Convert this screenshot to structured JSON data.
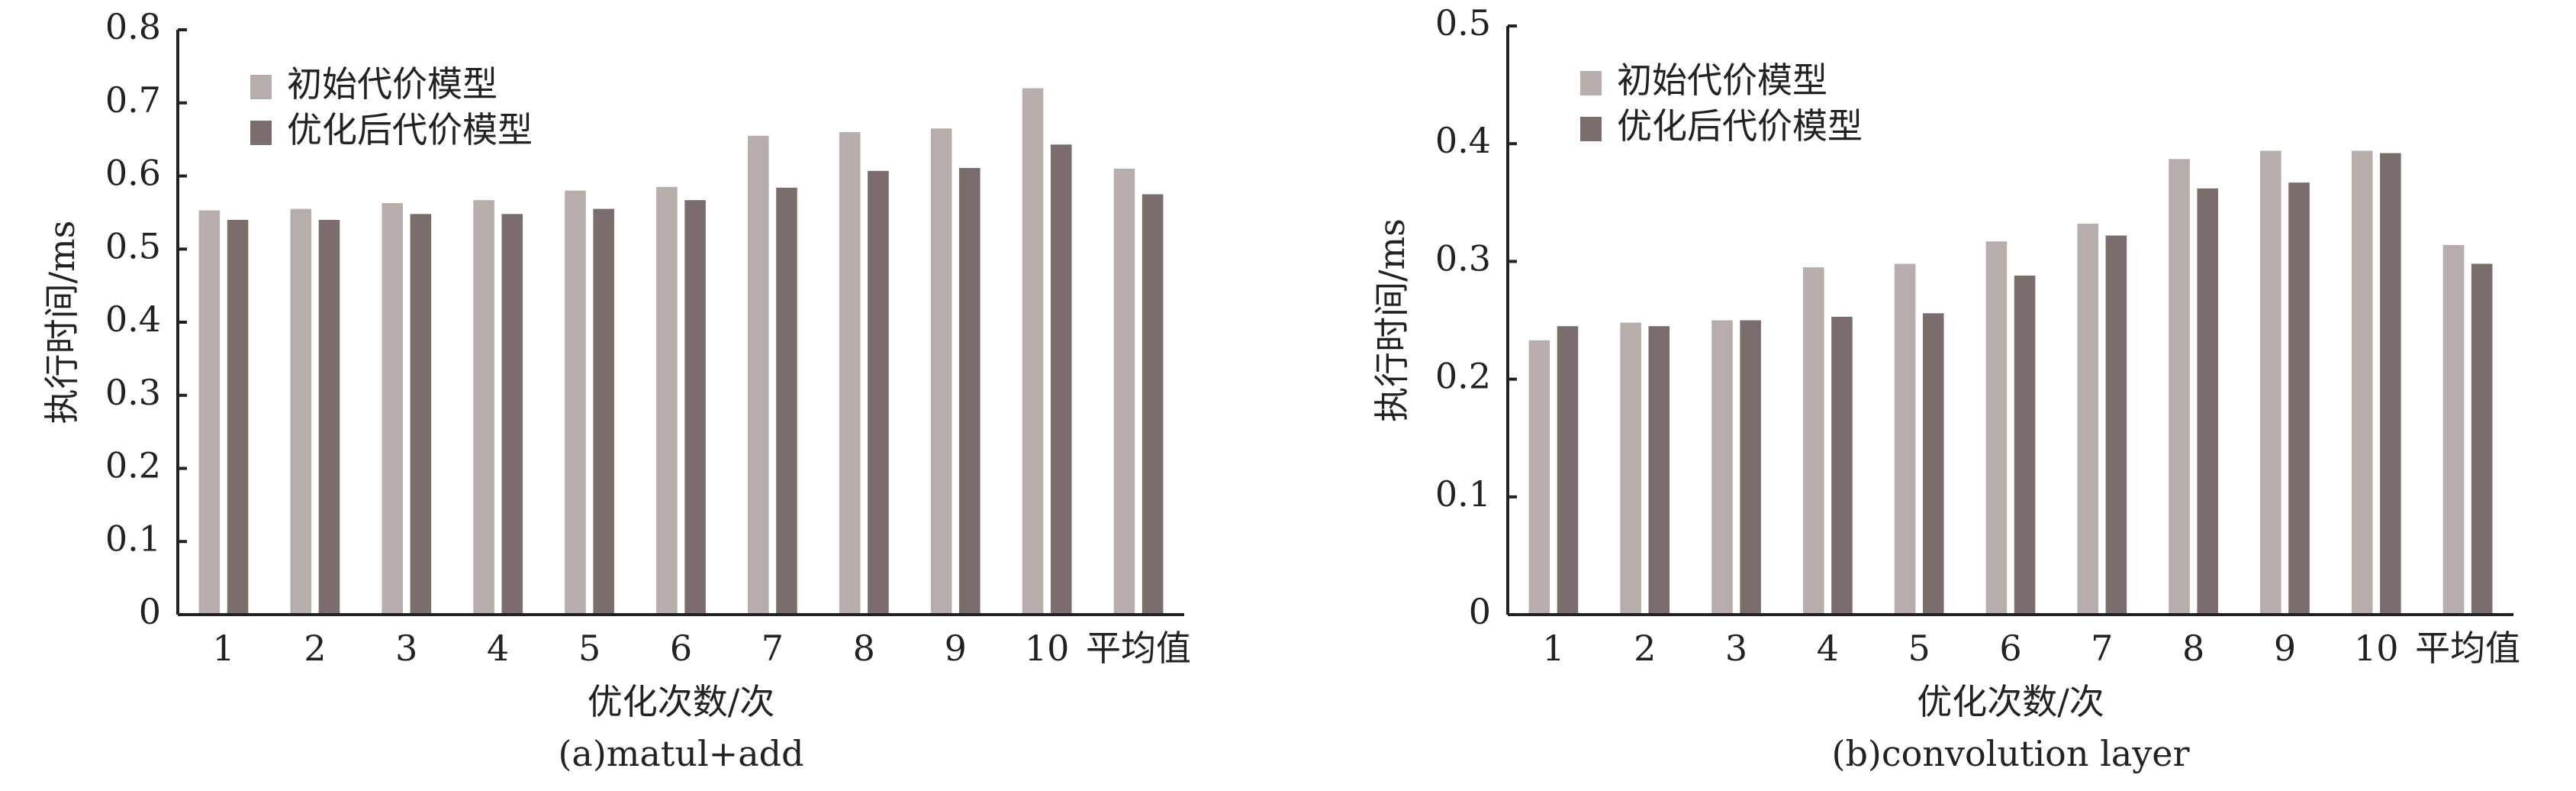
{
  "chart_data": [
    {
      "type": "bar",
      "caption": "(a)matul+add",
      "x_label": "优化次数/次",
      "y_label": "执行时间/ms",
      "categories": [
        "1",
        "2",
        "3",
        "4",
        "5",
        "6",
        "7",
        "8",
        "9",
        "10",
        "平均值"
      ],
      "series": [
        {
          "name": "初始代价模型",
          "color": "#b7aeab",
          "values": [
            0.553,
            0.555,
            0.563,
            0.567,
            0.58,
            0.585,
            0.655,
            0.66,
            0.665,
            0.72,
            0.61
          ]
        },
        {
          "name": "优化后代价模型",
          "color": "#7a6d6b",
          "values": [
            0.54,
            0.54,
            0.548,
            0.548,
            0.555,
            0.567,
            0.584,
            0.607,
            0.611,
            0.643,
            0.575
          ]
        }
      ],
      "ylim": [
        0,
        0.8
      ],
      "yticks": [
        0,
        0.1,
        0.2,
        0.3,
        0.4,
        0.5,
        0.6,
        0.7,
        0.8
      ],
      "legend": "upper left"
    },
    {
      "type": "bar",
      "caption": "(b)convolution layer",
      "x_label": "优化次数/次",
      "y_label": "执行时间/ms",
      "categories": [
        "1",
        "2",
        "3",
        "4",
        "5",
        "6",
        "7",
        "8",
        "9",
        "10",
        "平均值"
      ],
      "series": [
        {
          "name": "初始代价模型",
          "color": "#b7aeab",
          "values": [
            0.233,
            0.248,
            0.25,
            0.295,
            0.298,
            0.317,
            0.332,
            0.387,
            0.394,
            0.394,
            0.314
          ]
        },
        {
          "name": "优化后代价模型",
          "color": "#7a6d6b",
          "values": [
            0.245,
            0.245,
            0.25,
            0.253,
            0.256,
            0.288,
            0.322,
            0.362,
            0.367,
            0.392,
            0.298
          ]
        }
      ],
      "ylim": [
        0,
        0.5
      ],
      "yticks": [
        0,
        0.1,
        0.2,
        0.3,
        0.4,
        0.5
      ],
      "legend": "upper left"
    }
  ]
}
